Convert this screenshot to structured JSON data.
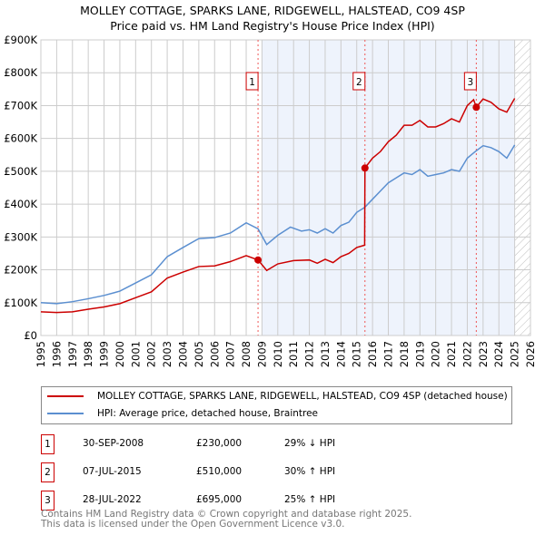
{
  "chart_data": {
    "type": "line",
    "title": "MOLLEY COTTAGE, SPARKS LANE, RIDGEWELL, HALSTEAD, CO9 4SP",
    "subtitle": "Price paid vs. HM Land Registry's House Price Index (HPI)",
    "xlim": [
      1995,
      2026
    ],
    "ylim": [
      0,
      900000
    ],
    "x_ticks": [
      "1995",
      "1996",
      "1997",
      "1998",
      "1999",
      "2000",
      "2001",
      "2002",
      "2003",
      "2004",
      "2005",
      "2006",
      "2007",
      "2008",
      "2009",
      "2010",
      "2011",
      "2012",
      "2013",
      "2014",
      "2015",
      "2016",
      "2017",
      "2018",
      "2019",
      "2020",
      "2021",
      "2022",
      "2023",
      "2024",
      "2025",
      "2026"
    ],
    "y_ticks": [
      {
        "v": 0,
        "label": "£0"
      },
      {
        "v": 100000,
        "label": "£100K"
      },
      {
        "v": 200000,
        "label": "£200K"
      },
      {
        "v": 300000,
        "label": "£300K"
      },
      {
        "v": 400000,
        "label": "£400K"
      },
      {
        "v": 500000,
        "label": "£500K"
      },
      {
        "v": 600000,
        "label": "£600K"
      },
      {
        "v": 700000,
        "label": "£700K"
      },
      {
        "v": 800000,
        "label": "£800K"
      },
      {
        "v": 900000,
        "label": "£900K"
      }
    ],
    "shaded_range": [
      2009,
      2025
    ],
    "hatched_from": 2025,
    "series": [
      {
        "name": "MOLLEY COTTAGE, SPARKS LANE, RIDGEWELL, HALSTEAD, CO9 4SP (detached house)",
        "color": "#cc0000",
        "x": [
          1995,
          1996,
          1997,
          1998,
          1999,
          2000,
          2001,
          2002,
          2003,
          2004,
          2005,
          2006,
          2007,
          2008,
          2008.75,
          2009.3,
          2010,
          2011,
          2012,
          2012.5,
          2013,
          2013.5,
          2014,
          2014.5,
          2015,
          2015.5,
          2015.52,
          2016,
          2016.5,
          2017,
          2017.5,
          2018,
          2018.5,
          2019,
          2019.5,
          2020,
          2020.5,
          2021,
          2021.5,
          2022,
          2022.4,
          2022.57,
          2023,
          2023.5,
          2024,
          2024.5,
          2025
        ],
        "y": [
          72000,
          70000,
          72000,
          80000,
          87000,
          97000,
          115000,
          133000,
          175000,
          193000,
          210000,
          212000,
          225000,
          243000,
          230000,
          198000,
          218000,
          228000,
          230000,
          220000,
          232000,
          222000,
          240000,
          250000,
          268000,
          275000,
          510000,
          540000,
          560000,
          590000,
          610000,
          640000,
          640000,
          655000,
          635000,
          635000,
          645000,
          660000,
          650000,
          700000,
          718000,
          695000,
          720000,
          710000,
          690000,
          680000,
          722000
        ]
      },
      {
        "name": "HPI: Average price, detached house, Braintree",
        "color": "#5b8fd0",
        "x": [
          1995,
          1996,
          1997,
          1998,
          1999,
          2000,
          2001,
          2002,
          2003,
          2004,
          2005,
          2006,
          2007,
          2008,
          2008.75,
          2009.3,
          2010,
          2010.8,
          2011.5,
          2012,
          2012.5,
          2013,
          2013.5,
          2014,
          2014.5,
          2015,
          2015.5,
          2016,
          2016.5,
          2017,
          2017.5,
          2018,
          2018.5,
          2019,
          2019.5,
          2020,
          2020.5,
          2021,
          2021.5,
          2022,
          2022.5,
          2023,
          2023.5,
          2024,
          2024.5,
          2025
        ],
        "y": [
          100000,
          97000,
          103000,
          112000,
          122000,
          135000,
          160000,
          185000,
          240000,
          268000,
          295000,
          298000,
          312000,
          343000,
          325000,
          277000,
          305000,
          330000,
          318000,
          322000,
          312000,
          325000,
          312000,
          335000,
          345000,
          375000,
          390000,
          415000,
          440000,
          465000,
          480000,
          495000,
          490000,
          505000,
          485000,
          490000,
          495000,
          505000,
          500000,
          540000,
          560000,
          578000,
          572000,
          560000,
          540000,
          580000
        ]
      }
    ],
    "sales": [
      {
        "n": "1",
        "x": 2008.75,
        "y": 230000,
        "date": "30-SEP-2008",
        "price": "£230,000",
        "hpi": "29% ↓ HPI"
      },
      {
        "n": "2",
        "x": 2015.52,
        "y": 510000,
        "date": "07-JUL-2015",
        "price": "£510,000",
        "hpi": "30% ↑ HPI"
      },
      {
        "n": "3",
        "x": 2022.57,
        "y": 695000,
        "date": "28-JUL-2022",
        "price": "£695,000",
        "hpi": "25% ↑ HPI"
      }
    ]
  },
  "legend": {
    "red": "MOLLEY COTTAGE, SPARKS LANE, RIDGEWELL, HALSTEAD, CO9 4SP (detached house)",
    "blue": "HPI: Average price, detached house, Braintree"
  },
  "footer": {
    "line1": "Contains HM Land Registry data © Crown copyright and database right 2025.",
    "line2": "This data is licensed under the Open Government Licence v3.0."
  }
}
